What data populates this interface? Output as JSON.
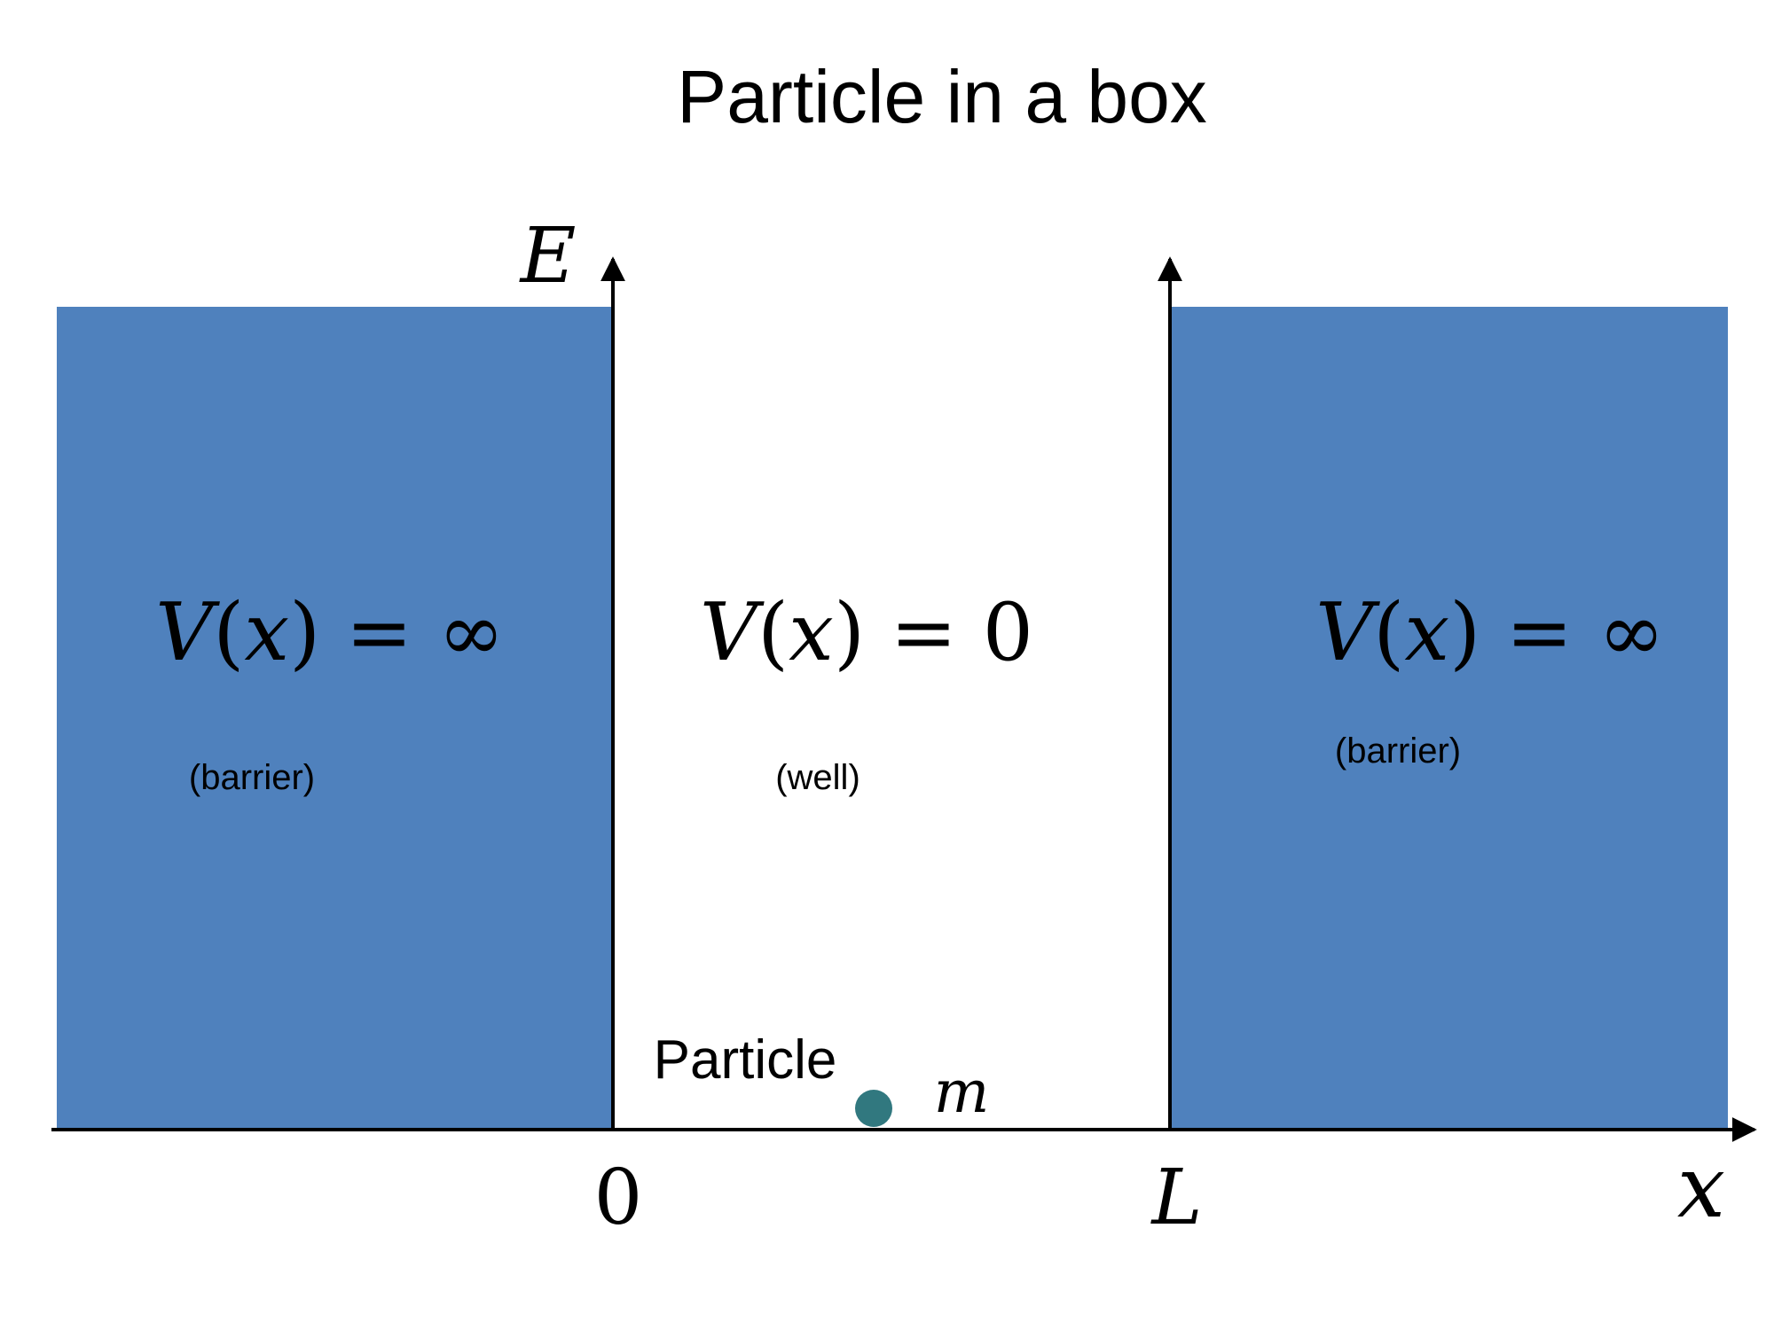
{
  "title": "Particle in a box",
  "axes": {
    "vertical_label": "E",
    "horizontal_label": "x",
    "tick_left": "0",
    "tick_right": "L"
  },
  "regions": {
    "left_barrier": {
      "potential_lhs": "V",
      "potential_arg": "x",
      "potential_value": "∞",
      "caption": "(barrier)"
    },
    "well": {
      "potential_lhs": "V",
      "potential_arg": "x",
      "potential_value": "0",
      "caption": "(well)"
    },
    "right_barrier": {
      "potential_lhs": "V",
      "potential_arg": "x",
      "potential_value": "∞",
      "caption": "(barrier)"
    }
  },
  "particle": {
    "label": "Particle",
    "mass_symbol": "m"
  },
  "colors": {
    "barrier_fill": "#4f81bd",
    "particle_fill": "#31787f",
    "axis_stroke": "#000000"
  }
}
